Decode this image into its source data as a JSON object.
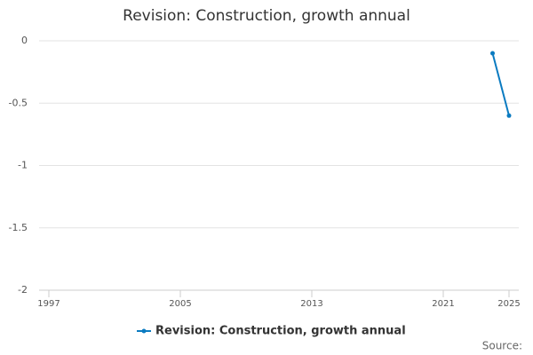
{
  "chart_data": {
    "type": "line",
    "title": "Revision: Construction, growth annual",
    "x": [
      2024,
      2025
    ],
    "series": [
      {
        "name": "Revision: Construction, growth annual",
        "color": "#0b7bc1",
        "values": [
          -0.1,
          -0.6
        ]
      }
    ],
    "xlim": [
      1997,
      2025
    ],
    "xticks": [
      1997,
      2005,
      2013,
      2021,
      2025
    ],
    "ylim": [
      -2,
      0
    ],
    "yticks": [
      0,
      -0.5,
      -1,
      -1.5,
      -2
    ],
    "grid": true,
    "legend": "bottom",
    "source": "Source:"
  }
}
